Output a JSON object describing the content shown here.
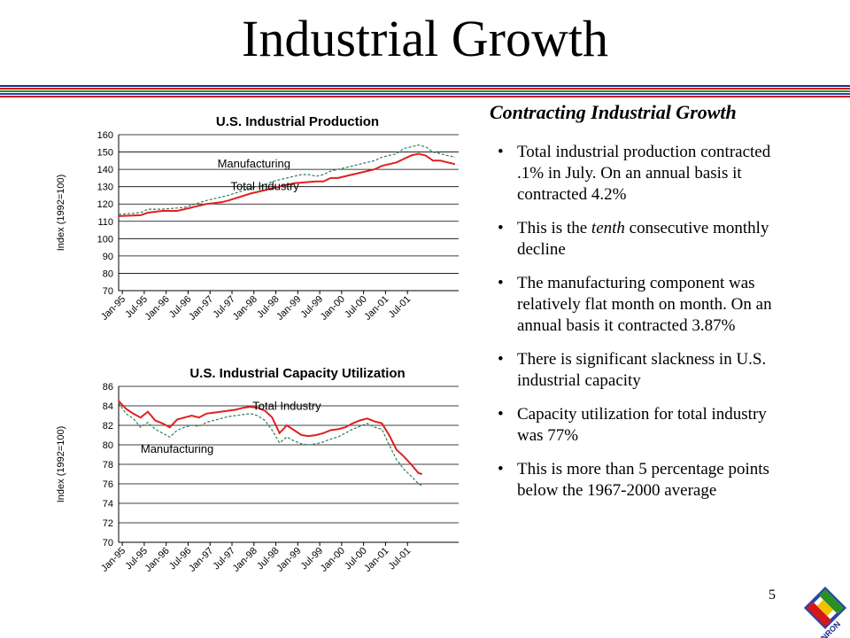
{
  "slide": {
    "title": "Industrial Growth",
    "page_number": "5",
    "logo_text": "ENRON"
  },
  "stripe_colors": [
    "#1f2a8c",
    "#d21919",
    "#2a8f2a",
    "#2a43a8",
    "#c91c1c"
  ],
  "text_panel": {
    "heading": "Contracting Industrial Growth",
    "bullets": [
      {
        "id": "b1",
        "before": "Total industrial production contracted .1% in July.  On an annual basis it contracted 4.2%",
        "emph": "",
        "after": ""
      },
      {
        "id": "b2",
        "before": "This is the ",
        "emph": "tenth",
        "after": " consecutive monthly decline"
      },
      {
        "id": "b3",
        "before": "The manufacturing component was relatively flat month on month.  On an annual basis it contracted 3.87%",
        "emph": "",
        "after": ""
      },
      {
        "id": "b4",
        "before": "There is significant slackness in U.S. industrial capacity",
        "emph": "",
        "after": ""
      },
      {
        "id": "b5",
        "before": "Capacity utilization for total industry was 77%",
        "emph": "",
        "after": ""
      },
      {
        "id": "b6",
        "before": "This is more than 5 percentage points below the 1967-2000 average",
        "emph": "",
        "after": ""
      }
    ]
  },
  "chart_data": [
    {
      "type": "line",
      "title": "U.S. Industrial Production",
      "ylabel": "Index (1992=100)",
      "xlabel": "",
      "ylim": [
        70,
        160
      ],
      "yticks": [
        70,
        80,
        90,
        100,
        110,
        120,
        130,
        140,
        150,
        160
      ],
      "x_tick_labels": [
        "Jan-95",
        "Jul-95",
        "Jan-96",
        "Jul-96",
        "Jan-97",
        "Jul-97",
        "Jan-98",
        "Jul-98",
        "Jan-99",
        "Jul-99",
        "Jan-00",
        "Jul-00",
        "Jan-01",
        "Jul-01"
      ],
      "grid": true,
      "legend": "none",
      "months": 80,
      "annotations": [
        {
          "text": "Manufacturing",
          "series": "Manufacturing",
          "month": 37,
          "value": 141
        },
        {
          "text": "Total Industry",
          "series": "Total Industry",
          "month": 40,
          "value": 128
        }
      ],
      "series": [
        {
          "name": "Total Industry",
          "color": "#e02020",
          "dash": "",
          "points": [
            [
              0,
              113
            ],
            [
              6,
              113.5
            ],
            [
              8,
              115
            ],
            [
              12,
              116
            ],
            [
              16,
              116
            ],
            [
              18,
              117
            ],
            [
              24,
              120
            ],
            [
              28,
              121
            ],
            [
              30,
              122
            ],
            [
              36,
              126
            ],
            [
              40,
              128
            ],
            [
              42,
              129
            ],
            [
              46,
              131
            ],
            [
              48,
              132
            ],
            [
              54,
              133
            ],
            [
              56,
              133
            ],
            [
              58,
              135
            ],
            [
              60,
              135
            ],
            [
              62,
              136
            ],
            [
              66,
              138
            ],
            [
              70,
              140
            ],
            [
              72,
              142
            ],
            [
              76,
              144
            ],
            [
              78,
              146
            ],
            [
              80,
              148
            ],
            [
              82,
              149
            ],
            [
              84,
              148
            ],
            [
              86,
              145
            ],
            [
              88,
              145
            ],
            [
              90,
              144
            ],
            [
              92,
              143
            ]
          ]
        },
        {
          "name": "Manufacturing",
          "color": "#2e7d5a",
          "dash": "3,2",
          "points": [
            [
              0,
              114
            ],
            [
              6,
              115
            ],
            [
              8,
              117
            ],
            [
              12,
              117
            ],
            [
              18,
              118
            ],
            [
              24,
              122
            ],
            [
              30,
              125
            ],
            [
              36,
              129
            ],
            [
              40,
              131
            ],
            [
              42,
              133
            ],
            [
              46,
              135
            ],
            [
              50,
              137
            ],
            [
              52,
              137
            ],
            [
              54,
              136
            ],
            [
              56,
              137
            ],
            [
              58,
              139
            ],
            [
              60,
              140
            ],
            [
              62,
              141
            ],
            [
              66,
              143
            ],
            [
              70,
              145
            ],
            [
              72,
              147
            ],
            [
              76,
              149
            ],
            [
              78,
              152
            ],
            [
              80,
              153
            ],
            [
              82,
              154
            ],
            [
              84,
              153
            ],
            [
              86,
              150
            ],
            [
              88,
              149
            ],
            [
              90,
              148
            ],
            [
              92,
              147
            ]
          ]
        }
      ]
    },
    {
      "type": "line",
      "title": "U.S. Industrial Capacity Utilization",
      "ylabel": "Index (1992=100)",
      "xlabel": "",
      "ylim": [
        70,
        86
      ],
      "yticks": [
        70,
        72,
        74,
        76,
        78,
        80,
        82,
        84,
        86
      ],
      "x_tick_labels": [
        "Jan-95",
        "Jul-95",
        "Jan-96",
        "Jul-96",
        "Jan-97",
        "Jul-97",
        "Jan-98",
        "Jul-98",
        "Jan-99",
        "Jul-99",
        "Jan-00",
        "Jul-00",
        "Jan-01",
        "Jul-01"
      ],
      "grid": true,
      "legend": "none",
      "months": 80,
      "annotations": [
        {
          "text": "Total Industry",
          "series": "Total Industry",
          "month": 46,
          "value": 83.6
        },
        {
          "text": "Manufacturing",
          "series": "Manufacturing",
          "month": 16,
          "value": 79.2
        }
      ],
      "series": [
        {
          "name": "Total Industry",
          "color": "#e02020",
          "dash": "",
          "points": [
            [
              0,
              84.5
            ],
            [
              2,
              83.7
            ],
            [
              4,
              83.2
            ],
            [
              6,
              82.8
            ],
            [
              8,
              83.4
            ],
            [
              10,
              82.5
            ],
            [
              12,
              82.2
            ],
            [
              14,
              81.8
            ],
            [
              16,
              82.6
            ],
            [
              18,
              82.8
            ],
            [
              20,
              83.0
            ],
            [
              22,
              82.8
            ],
            [
              24,
              83.2
            ],
            [
              26,
              83.3
            ],
            [
              28,
              83.4
            ],
            [
              30,
              83.5
            ],
            [
              32,
              83.6
            ],
            [
              34,
              83.8
            ],
            [
              36,
              83.9
            ],
            [
              38,
              83.8
            ],
            [
              40,
              83.5
            ],
            [
              42,
              82.8
            ],
            [
              44,
              81.2
            ],
            [
              46,
              82.0
            ],
            [
              48,
              81.5
            ],
            [
              50,
              81.0
            ],
            [
              52,
              80.9
            ],
            [
              54,
              81.0
            ],
            [
              56,
              81.2
            ],
            [
              58,
              81.5
            ],
            [
              60,
              81.6
            ],
            [
              62,
              81.8
            ],
            [
              64,
              82.2
            ],
            [
              66,
              82.5
            ],
            [
              68,
              82.7
            ],
            [
              70,
              82.4
            ],
            [
              72,
              82.2
            ],
            [
              74,
              81.0
            ],
            [
              76,
              79.5
            ],
            [
              78,
              78.8
            ],
            [
              80,
              78.0
            ],
            [
              82,
              77.1
            ],
            [
              83,
              77.0
            ]
          ]
        },
        {
          "name": "Manufacturing",
          "color": "#2e7d5a",
          "dash": "3,2",
          "points": [
            [
              0,
              84.3
            ],
            [
              2,
              83.2
            ],
            [
              4,
              82.7
            ],
            [
              6,
              81.8
            ],
            [
              8,
              82.3
            ],
            [
              10,
              81.6
            ],
            [
              12,
              81.2
            ],
            [
              14,
              80.8
            ],
            [
              16,
              81.5
            ],
            [
              18,
              81.8
            ],
            [
              20,
              82.0
            ],
            [
              22,
              81.9
            ],
            [
              24,
              82.3
            ],
            [
              26,
              82.5
            ],
            [
              28,
              82.7
            ],
            [
              30,
              82.9
            ],
            [
              32,
              83.0
            ],
            [
              34,
              83.1
            ],
            [
              36,
              83.2
            ],
            [
              38,
              83.0
            ],
            [
              40,
              82.5
            ],
            [
              42,
              81.5
            ],
            [
              44,
              80.2
            ],
            [
              46,
              80.8
            ],
            [
              48,
              80.4
            ],
            [
              50,
              80.1
            ],
            [
              52,
              80.0
            ],
            [
              54,
              80.1
            ],
            [
              56,
              80.3
            ],
            [
              58,
              80.6
            ],
            [
              60,
              80.8
            ],
            [
              62,
              81.2
            ],
            [
              64,
              81.6
            ],
            [
              66,
              81.9
            ],
            [
              68,
              82.2
            ],
            [
              70,
              81.8
            ],
            [
              72,
              81.6
            ],
            [
              74,
              80.0
            ],
            [
              76,
              78.5
            ],
            [
              78,
              77.5
            ],
            [
              80,
              76.8
            ],
            [
              82,
              76.0
            ],
            [
              83,
              75.8
            ]
          ]
        }
      ]
    }
  ]
}
